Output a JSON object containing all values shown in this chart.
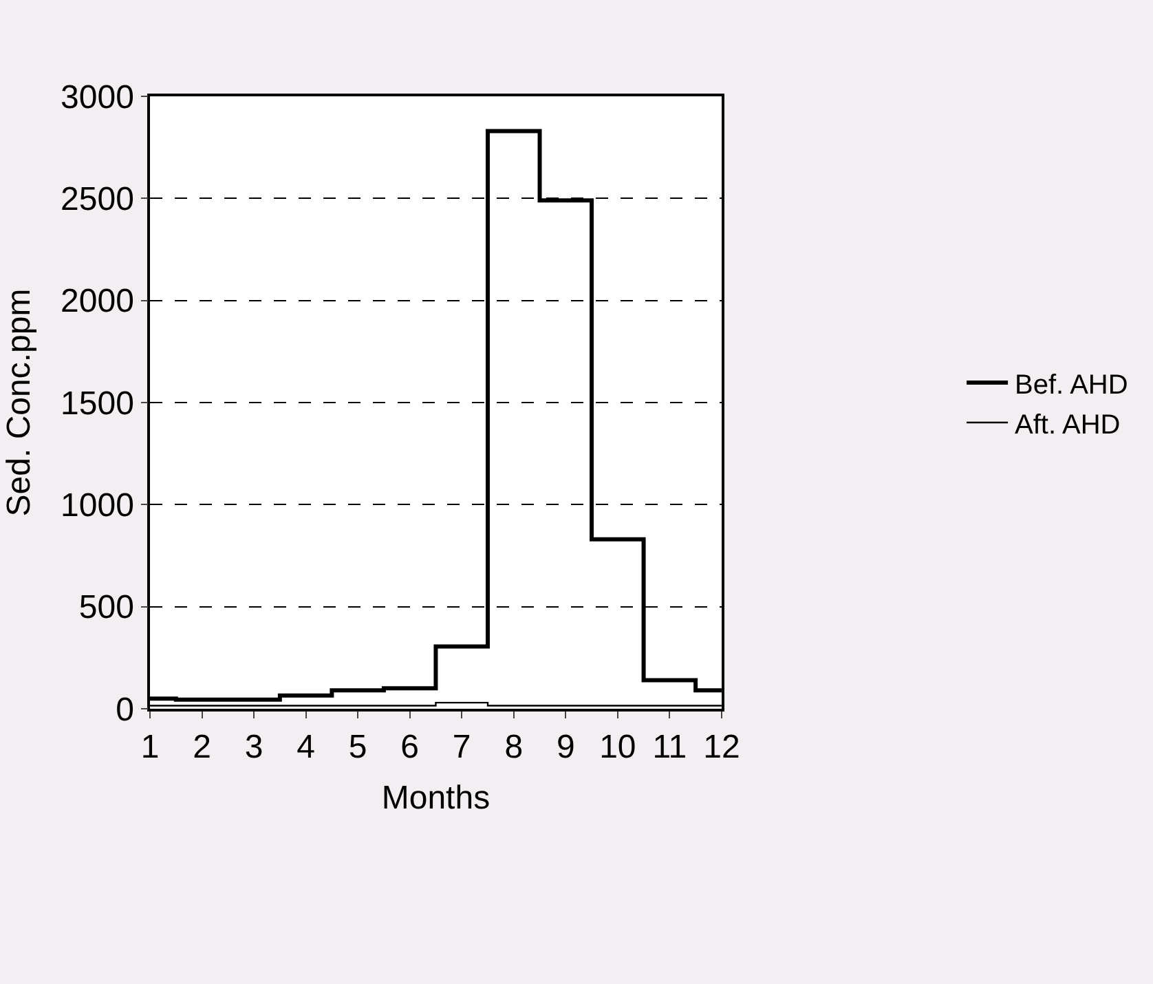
{
  "chart_data": {
    "type": "step",
    "xlabel": "Months",
    "ylabel": "Sed. Conc.ppm",
    "x": [
      1,
      2,
      3,
      4,
      5,
      6,
      7,
      8,
      9,
      10,
      11,
      12
    ],
    "series": [
      {
        "name": "Bef. AHD",
        "color": "#000000",
        "values": [
          50,
          45,
          45,
          65,
          90,
          100,
          305,
          2830,
          2490,
          830,
          140,
          90
        ]
      },
      {
        "name": "Aft. AHD",
        "color": "#000000",
        "values": [
          15,
          15,
          15,
          15,
          15,
          15,
          30,
          15,
          15,
          15,
          15,
          15
        ]
      }
    ],
    "xlim": [
      1,
      12
    ],
    "xticks": [
      1,
      2,
      3,
      4,
      5,
      6,
      7,
      8,
      9,
      10,
      11,
      12
    ],
    "ylim": [
      0,
      3000
    ],
    "yticks": [
      0,
      500,
      1000,
      1500,
      2000,
      2500,
      3000
    ],
    "grid": "y",
    "legend": "right",
    "line_style": "solid"
  }
}
